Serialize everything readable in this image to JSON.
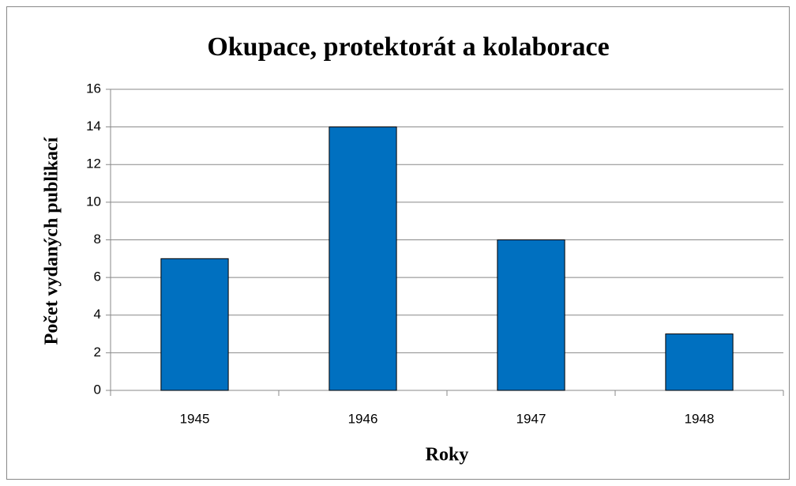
{
  "chart_data": {
    "type": "bar",
    "title": "Okupace, protektorát a kolaborace",
    "x_label": "Roky",
    "y_label": "Počet vydaných publikací",
    "categories": [
      "1945",
      "1946",
      "1947",
      "1948"
    ],
    "values": [
      7,
      14,
      8,
      3
    ],
    "color": "#0070c0",
    "ylim": [
      0,
      16
    ],
    "yticks": [
      0,
      2,
      4,
      6,
      8,
      10,
      12,
      14,
      16
    ],
    "grid": true
  }
}
